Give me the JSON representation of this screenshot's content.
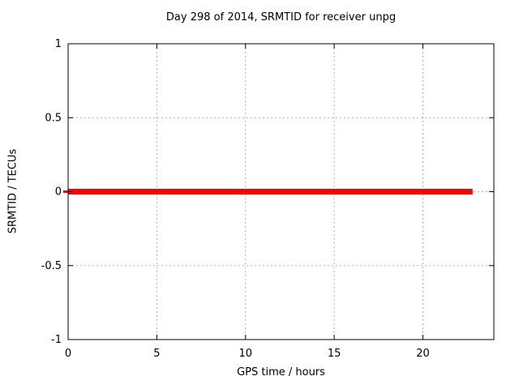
{
  "chart_data": {
    "type": "line",
    "title": "Day 298 of 2014, SRMTID for receiver unpg",
    "xlabel": "GPS time / hours",
    "ylabel": "SRMTID / TECUs",
    "xlim": [
      0,
      24
    ],
    "ylim": [
      -1,
      1
    ],
    "xticks": [
      {
        "value": 0,
        "label": "0"
      },
      {
        "value": 5,
        "label": "5"
      },
      {
        "value": 10,
        "label": "10"
      },
      {
        "value": 15,
        "label": "15"
      },
      {
        "value": 20,
        "label": "20"
      }
    ],
    "yticks": [
      {
        "value": -1,
        "label": "-1"
      },
      {
        "value": -0.5,
        "label": "-0.5"
      },
      {
        "value": 0,
        "label": "0"
      },
      {
        "value": 0.5,
        "label": "0.5"
      },
      {
        "value": 1,
        "label": "1"
      }
    ],
    "grid": true,
    "legend_position": "none",
    "series": [
      {
        "name": "SRMTID",
        "color": "#ff0000",
        "linewidth": 7,
        "x": [
          0,
          22.8
        ],
        "y": [
          0,
          0
        ]
      }
    ],
    "colors": {
      "background": "#ffffff",
      "axis": "#000000",
      "grid": "#b0b0b0",
      "text": "#000000"
    }
  }
}
